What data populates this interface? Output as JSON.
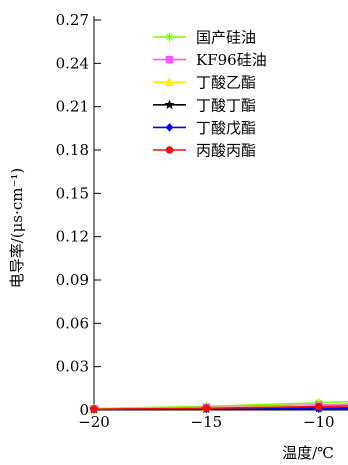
{
  "chart_data": {
    "type": "line",
    "xlabel": "温度/℃",
    "ylabel": "电导率/(μs·cm⁻¹)",
    "ylim": [
      0,
      0.27
    ],
    "y_ticks": [
      "0",
      "0.03",
      "0.06",
      "0.09",
      "0.12",
      "0.15",
      "0.18",
      "0.21",
      "0.24",
      "0.27"
    ],
    "x_ticks": [
      "−20",
      "−15",
      "−10"
    ],
    "x_tick_values": [
      -20,
      -15,
      -10
    ],
    "x_view_range": [
      -20,
      -8.7
    ],
    "legend_position": "top-center",
    "grid": false,
    "series": [
      {
        "name": "国产硅油",
        "color": "#7cfc00",
        "marker": "asterisk",
        "x": [
          -20,
          -15,
          -10,
          -8.7
        ],
        "y": [
          0.001,
          0.0025,
          0.005,
          0.0058
        ]
      },
      {
        "name": "KF96硅油",
        "color": "#ff55ff",
        "marker": "square",
        "x": [
          -20,
          -15,
          -10,
          -8.7
        ],
        "y": [
          0.0008,
          0.0018,
          0.0035,
          0.004
        ]
      },
      {
        "name": "丁酸乙酯",
        "color": "#ffee00",
        "marker": "triangle",
        "x": [
          -20,
          -15,
          -10,
          -8.7
        ],
        "y": [
          0.0008,
          0.0015,
          0.0028,
          0.0032
        ]
      },
      {
        "name": "丁酸丁酯",
        "color": "#000000",
        "marker": "star",
        "x": [
          -20,
          -15,
          -10,
          -8.7
        ],
        "y": [
          0.0005,
          0.0008,
          0.0012,
          0.0014
        ]
      },
      {
        "name": "丁酸戊酯",
        "color": "#0000ee",
        "marker": "diamond",
        "x": [
          -20,
          -15,
          -10,
          -8.7
        ],
        "y": [
          0.0004,
          0.0006,
          0.0009,
          0.001
        ]
      },
      {
        "name": "丙酸丙酯",
        "color": "#ee1111",
        "marker": "circle",
        "x": [
          -20,
          -15,
          -10,
          -8.7
        ],
        "y": [
          0.0006,
          0.0012,
          0.0024,
          0.0028
        ]
      }
    ]
  }
}
